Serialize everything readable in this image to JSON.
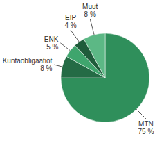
{
  "chart_data": {
    "type": "pie",
    "categories": [
      "MTN",
      "Kuntaobligaatiot",
      "ENK",
      "EIP",
      "Muut"
    ],
    "values": [
      75,
      8,
      5,
      4,
      8
    ],
    "value_labels": [
      "75 %",
      "8 %",
      "5 %",
      "4 %",
      "8 %"
    ],
    "colors": [
      "#2f8f5b",
      "#246b45",
      "#3fa56d",
      "#1f5c3b",
      "#5cb885"
    ],
    "data_labels": true
  }
}
